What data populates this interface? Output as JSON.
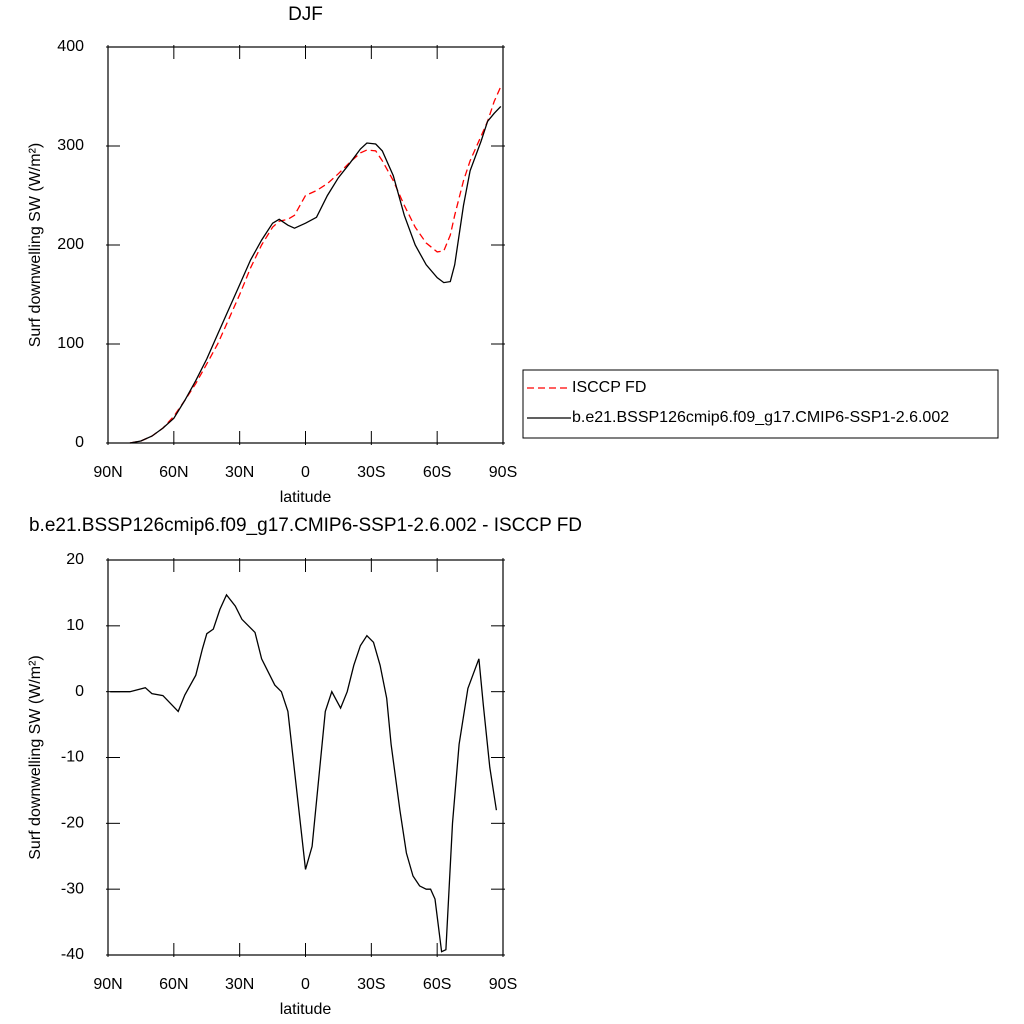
{
  "chart_data": [
    {
      "type": "line",
      "title": "DJF",
      "xlabel": "latitude",
      "ylabel": "Surf downwelling SW (W/m²)",
      "x": [
        80,
        75,
        70,
        65,
        60,
        55,
        50,
        45,
        40,
        35,
        30,
        25,
        20,
        15,
        12,
        8,
        5,
        0,
        -5,
        -10,
        -15,
        -20,
        -25,
        -28,
        -32,
        -35,
        -40,
        -45,
        -50,
        -55,
        -60,
        -63,
        -66,
        -68,
        -72,
        -75,
        -80,
        -83,
        -86,
        -89
      ],
      "series": [
        {
          "name": "ISCCP FD",
          "color": "#ff0000",
          "line_style": "dashed",
          "values": [
            0,
            2,
            7,
            15,
            27,
            43,
            60,
            80,
            100,
            125,
            150,
            177,
            200,
            218,
            224,
            226,
            230,
            250,
            255,
            262,
            272,
            283,
            293,
            296,
            295,
            285,
            265,
            240,
            218,
            202,
            193,
            194,
            210,
            230,
            265,
            285,
            310,
            325,
            345,
            360
          ]
        },
        {
          "name": "b.e21.BSSP126cmip6.f09_g17.CMIP6-SSP1-2.6.002",
          "color": "#000000",
          "line_style": "solid",
          "values": [
            0,
            2,
            7,
            15,
            25,
            43,
            63,
            85,
            110,
            135,
            160,
            185,
            205,
            222,
            226,
            220,
            217,
            222,
            228,
            250,
            268,
            282,
            297,
            303,
            302,
            295,
            270,
            230,
            200,
            180,
            167,
            162,
            163,
            180,
            240,
            275,
            305,
            325,
            333,
            340
          ]
        }
      ],
      "xlim": [
        90,
        -90
      ],
      "xticks": [
        {
          "value": 90,
          "label": "90N"
        },
        {
          "value": 60,
          "label": "60N"
        },
        {
          "value": 30,
          "label": "30N"
        },
        0,
        {
          "value": -30,
          "label": "30S"
        },
        {
          "value": -60,
          "label": "60S"
        },
        {
          "value": -90,
          "label": "90S"
        }
      ],
      "ylim": [
        0,
        400
      ],
      "yticks": [
        0,
        100,
        200,
        300,
        400
      ],
      "legend": "right"
    },
    {
      "type": "line",
      "title": "b.e21.BSSP126cmip6.f09_g17.CMIP6-SSP1-2.6.002 - ISCCP FD",
      "xlabel": "latitude",
      "ylabel": "Surf downwelling SW (W/m²)",
      "x": [
        89,
        80,
        73,
        70,
        65,
        58,
        55,
        50,
        47,
        45,
        42,
        39,
        36,
        32,
        29,
        23,
        20,
        14,
        11,
        8,
        5,
        0,
        -3,
        -9,
        -12,
        -16,
        -19,
        -22,
        -25,
        -28,
        -31,
        -34,
        -37,
        -39,
        -43,
        -46,
        -49,
        -52,
        -55,
        -57,
        -59,
        -62,
        -64,
        -67,
        -70,
        -74,
        -79,
        -81,
        -84,
        -87
      ],
      "color": "#000000",
      "values": [
        0,
        0,
        0.6,
        -0.3,
        -0.6,
        -3,
        -0.5,
        2.5,
        6.5,
        8.8,
        9.5,
        12.5,
        14.7,
        13,
        11,
        9,
        5,
        1,
        0,
        -3,
        -12,
        -27,
        -23.5,
        -3,
        0,
        -2.5,
        0,
        4,
        7,
        8.5,
        7.5,
        4,
        -1,
        -8,
        -18,
        -24.5,
        -28,
        -29.5,
        -30,
        -30,
        -31.5,
        -39.5,
        -39.2,
        -20,
        -8,
        0.5,
        5,
        -2,
        -11.5,
        -18
      ],
      "xlim": [
        90,
        -90
      ],
      "xticks": [
        {
          "value": 90,
          "label": "90N"
        },
        {
          "value": 60,
          "label": "60N"
        },
        {
          "value": 30,
          "label": "30N"
        },
        0,
        {
          "value": -30,
          "label": "30S"
        },
        {
          "value": -60,
          "label": "60S"
        },
        {
          "value": -90,
          "label": "90S"
        }
      ],
      "ylim": [
        -40,
        20
      ],
      "yticks": [
        -40,
        -30,
        -20,
        -10,
        0,
        10,
        20
      ]
    }
  ]
}
